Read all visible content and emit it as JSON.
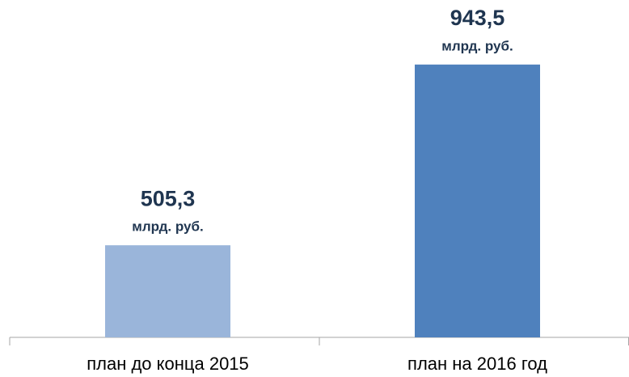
{
  "chart_data": {
    "type": "bar",
    "categories": [
      "план до конца 2015",
      "план на 2016 год"
    ],
    "values": [
      505.3,
      943.5
    ],
    "value_labels": [
      "505,3",
      "943,5"
    ],
    "unit": "млрд. руб.",
    "colors": [
      "#9ab5da",
      "#4f81bd"
    ],
    "ylim": [
      282,
      1100
    ]
  }
}
